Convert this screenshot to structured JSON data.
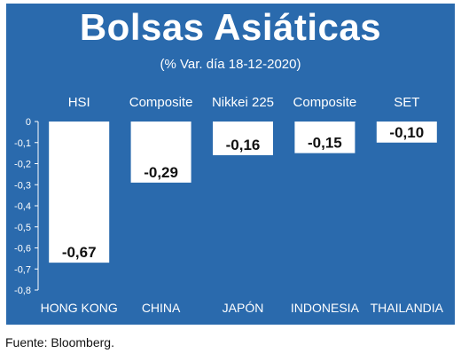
{
  "title": "Bolsas Asiáticas",
  "subtitle": "(% Var. día 18-12-2020)",
  "source": "Fuente: Bloomberg.",
  "colors": {
    "background": "#2a6aad",
    "bars": "#ffffff",
    "text_light": "#ffffff",
    "text_dark": "#111111"
  },
  "chart_data": {
    "type": "bar",
    "title": "Bolsas Asiáticas",
    "subtitle": "(% Var. día 18-12-2020)",
    "index_labels": [
      "HSI",
      "Composite",
      "Nikkei 225",
      "Composite",
      "SET"
    ],
    "categories": [
      "HONG KONG",
      "CHINA",
      "JAPÓN",
      "INDONESIA",
      "THAILANDIA"
    ],
    "values": [
      -0.67,
      -0.29,
      -0.16,
      -0.15,
      -0.1
    ],
    "value_labels": [
      "-0,67",
      "-0,29",
      "-0,16",
      "-0,15",
      "-0,10"
    ],
    "ylim": [
      -0.8,
      0
    ],
    "yticks": [
      0,
      -0.1,
      -0.2,
      -0.3,
      -0.4,
      -0.5,
      -0.6,
      -0.7,
      -0.8
    ],
    "ytick_labels": [
      "0",
      "-0,1",
      "-0,2",
      "-0,3",
      "-0,4",
      "-0,5",
      "-0,6",
      "-0,7",
      "-0,8"
    ],
    "grid": false,
    "legend": "none"
  }
}
